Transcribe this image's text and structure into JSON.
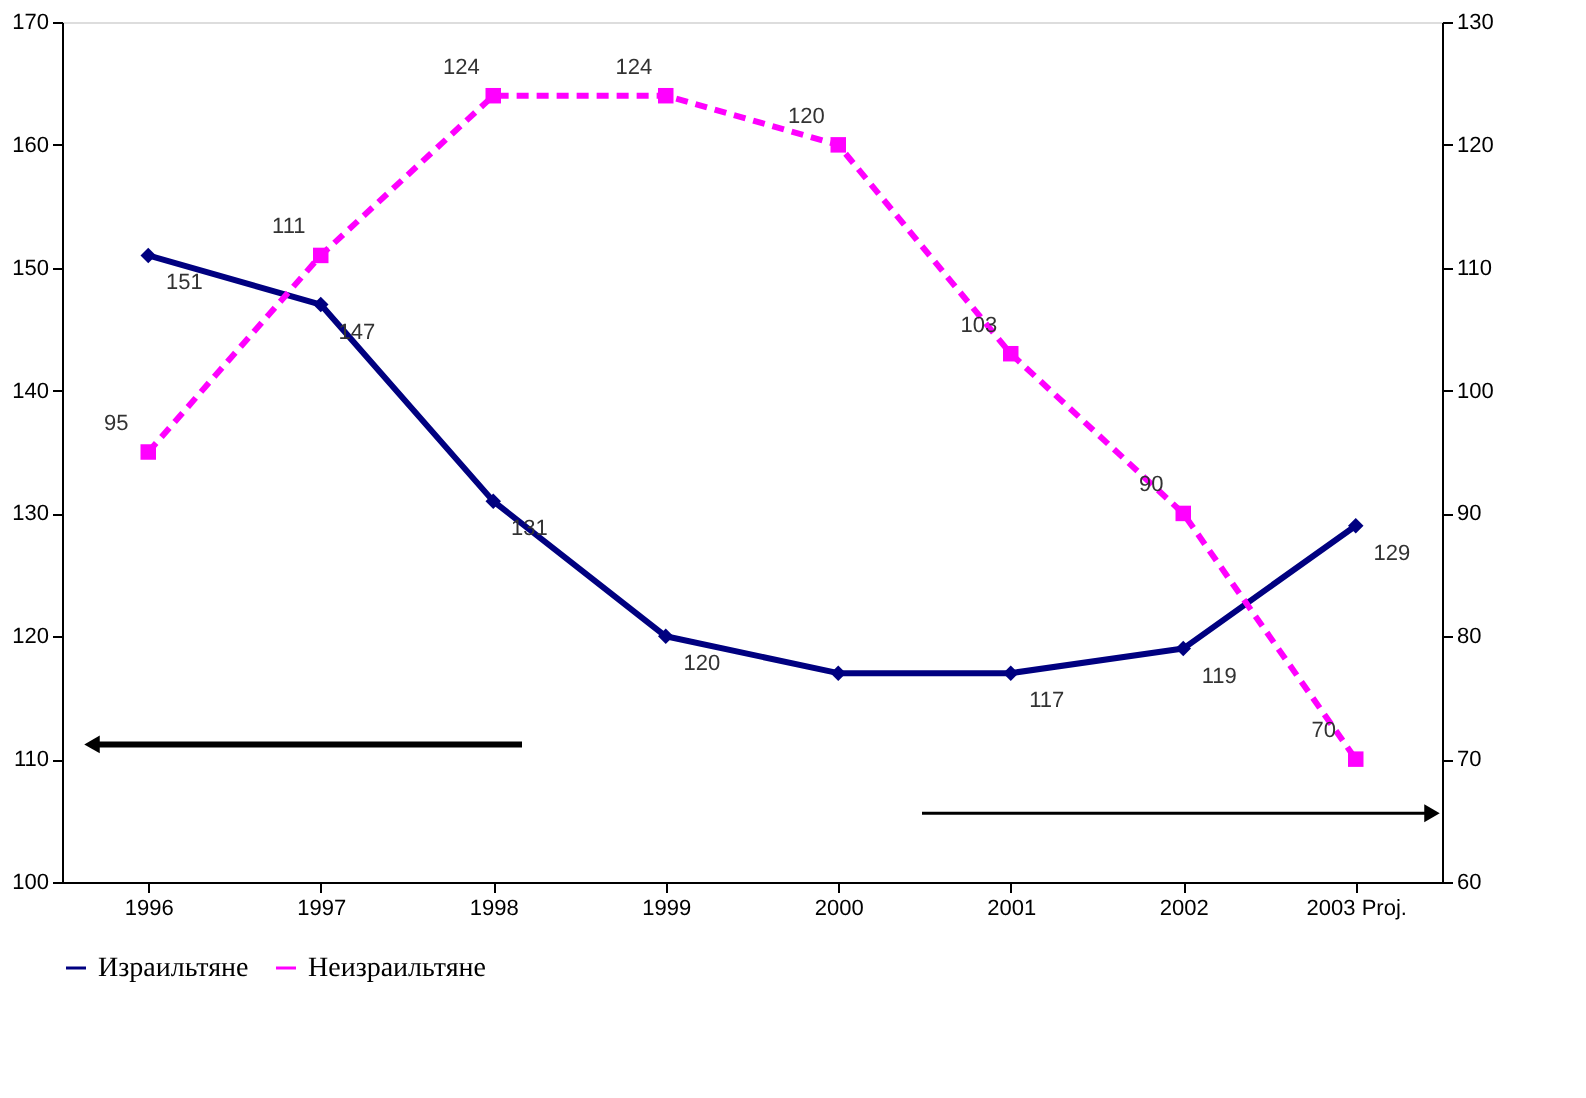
{
  "chart_data": {
    "type": "line",
    "categories": [
      "1996",
      "1997",
      "1998",
      "1999",
      "2000",
      "2001",
      "2002",
      "2003 Proj."
    ],
    "series": [
      {
        "name": "Израильтяне",
        "color": "#000080",
        "marker": "diamond",
        "line_style": "solid",
        "values": [
          151,
          147,
          131,
          120,
          117,
          117,
          119,
          129
        ],
        "value_labels": [
          "151",
          "147",
          "131",
          "120",
          null,
          "117",
          "119",
          "129"
        ]
      },
      {
        "name": "Неизраильтяне",
        "color": "#ff00ff",
        "marker": "square",
        "line_style": "dashed",
        "axis": "y2",
        "values": [
          95,
          111,
          124,
          124,
          120,
          103,
          90,
          70
        ],
        "value_labels": [
          "95",
          "111",
          "124",
          "124",
          "120",
          "103",
          "90",
          "70"
        ]
      }
    ],
    "ylim": [
      100,
      170
    ],
    "yticks": [
      100,
      110,
      120,
      130,
      140,
      150,
      160,
      170
    ],
    "y2lim": [
      60,
      130
    ],
    "y2ticks": [
      60,
      70,
      80,
      90,
      100,
      110,
      120,
      130
    ],
    "grid": false,
    "legend": "bottom"
  }
}
